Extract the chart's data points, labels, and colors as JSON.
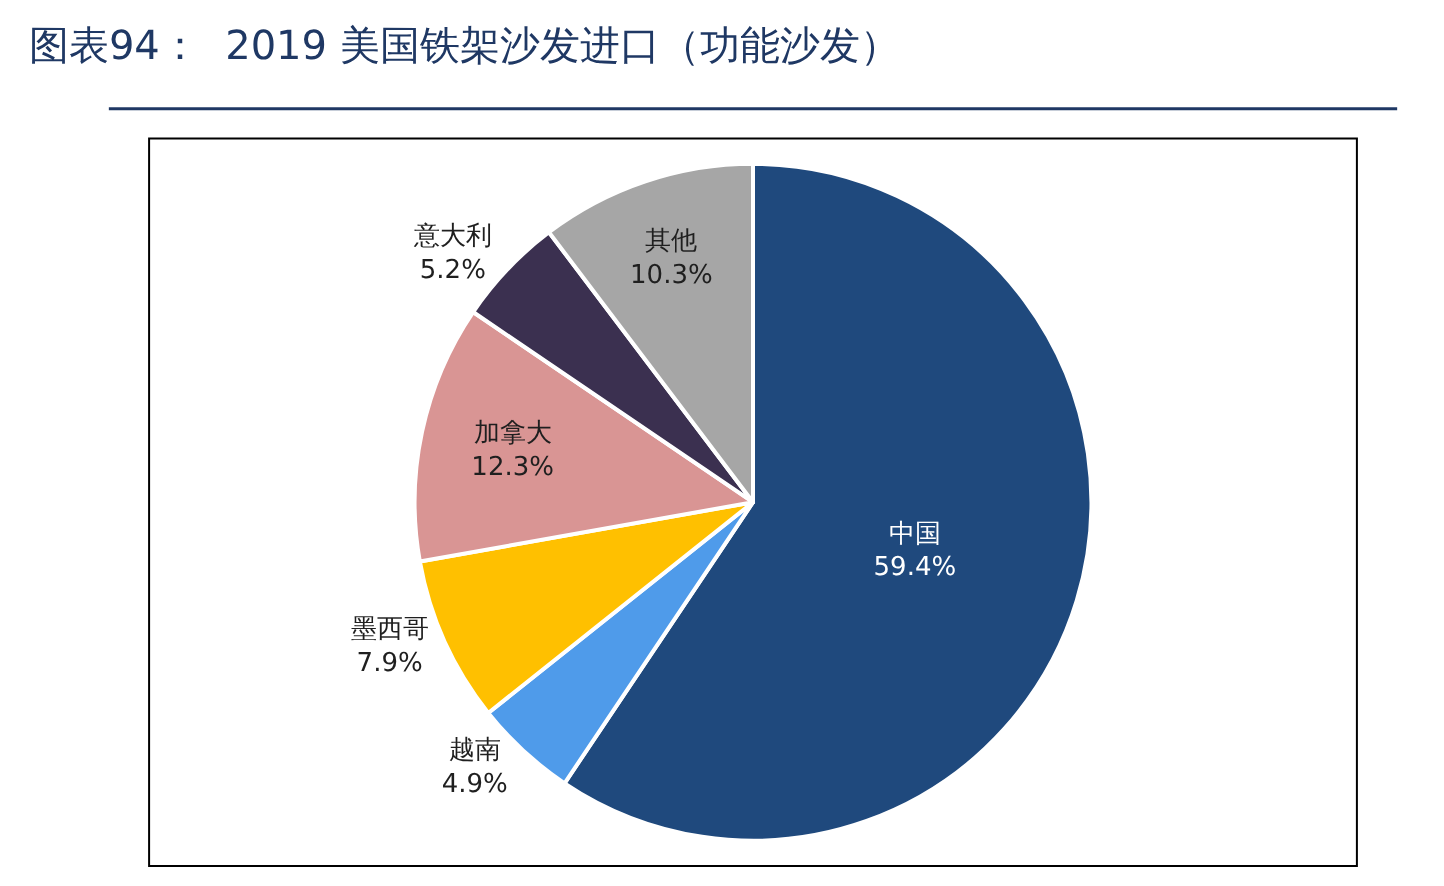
{
  "chart_data": {
    "type": "pie",
    "title": "图表94：  2019 美国铁架沙发进口（功能沙发）",
    "categories": [
      "中国",
      "越南",
      "墨西哥",
      "加拿大",
      "意大利",
      "其他"
    ],
    "values": [
      59.4,
      4.9,
      7.9,
      12.3,
      5.2,
      10.3
    ],
    "value_labels": [
      "59.4%",
      "4.9%",
      "7.9%",
      "12.3%",
      "5.2%",
      "10.3%"
    ],
    "colors": [
      "#1f497d",
      "#4f9bea",
      "#ffc000",
      "#d99594",
      "#3b3050",
      "#a6a6a6"
    ],
    "legend": false
  }
}
